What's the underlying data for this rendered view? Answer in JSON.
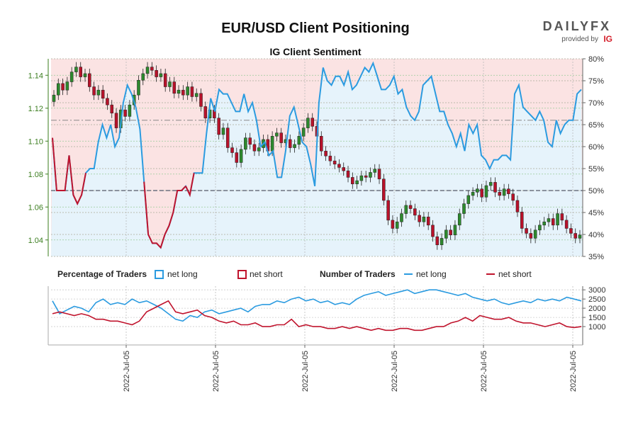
{
  "brand": {
    "logo_text": "DAILYFX",
    "provided_by": "provided by",
    "ig_mark": "IG",
    "accent_color": "#d4202c"
  },
  "chart_data": {
    "type": "line",
    "title": "EUR/USD Client Positioning",
    "subtitle": "IG Client Sentiment",
    "colors": {
      "net_long": "#2b9be0",
      "net_short": "#c0142d",
      "price_axis": "#3a7d1e",
      "long_fill": "#e6f3fb",
      "short_fill": "#fbe3e3"
    },
    "price_axis": {
      "ylim": [
        1.03,
        1.15
      ],
      "ticks": [
        "1.04",
        "1.06",
        "1.08",
        "1.10",
        "1.12",
        "1.14"
      ]
    },
    "pct_axis": {
      "ylim": [
        35,
        80
      ],
      "ticks": [
        "35%",
        "40%",
        "45%",
        "50%",
        "55%",
        "60%",
        "65%",
        "70%",
        "75%",
        "80%"
      ]
    },
    "count_axis": {
      "ylim": [
        0,
        3200
      ],
      "ticks": [
        "1000",
        "1500",
        "2000",
        "2500",
        "3000"
      ]
    },
    "x_labels": [
      "2022-Jul-05",
      "2022-Jul-05",
      "2022-Jul-05",
      "2022-Jul-05",
      "2022-Jul-05",
      "2022-Jul-05"
    ],
    "reference_pct": [
      50,
      66
    ],
    "price_close": [
      1.128,
      1.135,
      1.131,
      1.136,
      1.142,
      1.145,
      1.139,
      1.141,
      1.133,
      1.128,
      1.131,
      1.126,
      1.122,
      1.117,
      1.108,
      1.119,
      1.115,
      1.122,
      1.128,
      1.137,
      1.141,
      1.145,
      1.143,
      1.139,
      1.141,
      1.133,
      1.136,
      1.129,
      1.131,
      1.128,
      1.133,
      1.127,
      1.129,
      1.121,
      1.114,
      1.119,
      1.114,
      1.104,
      1.108,
      1.096,
      1.093,
      1.087,
      1.095,
      1.102,
      1.098,
      1.094,
      1.096,
      1.101,
      1.094,
      1.103,
      1.105,
      1.099,
      1.101,
      1.096,
      1.098,
      1.103,
      1.108,
      1.114,
      1.109,
      1.103,
      1.094,
      1.091,
      1.088,
      1.086,
      1.084,
      1.082,
      1.078,
      1.074,
      1.076,
      1.079,
      1.078,
      1.081,
      1.083,
      1.077,
      1.064,
      1.052,
      1.047,
      1.051,
      1.056,
      1.061,
      1.059,
      1.055,
      1.051,
      1.054,
      1.049,
      1.042,
      1.037,
      1.041,
      1.046,
      1.043,
      1.049,
      1.056,
      1.062,
      1.067,
      1.069,
      1.071,
      1.066,
      1.073,
      1.075,
      1.069,
      1.067,
      1.071,
      1.068,
      1.064,
      1.057,
      1.047,
      1.044,
      1.041,
      1.046,
      1.049,
      1.051,
      1.053,
      1.049,
      1.056,
      1.052,
      1.047,
      1.044,
      1.041,
      1.043
    ],
    "pct_long": [
      62,
      50,
      50,
      50,
      58,
      49,
      47,
      49,
      54,
      55,
      55,
      61,
      65,
      62,
      65,
      60,
      62,
      70,
      74,
      72,
      69,
      64,
      52,
      40,
      38,
      38,
      37,
      40,
      42,
      45,
      50,
      50,
      51,
      49,
      54,
      54,
      54,
      63,
      71,
      68,
      73,
      72,
      72,
      70,
      68,
      68,
      72,
      68,
      70,
      66,
      60,
      61,
      58,
      59,
      53,
      53,
      59,
      67,
      69,
      65,
      61,
      60,
      56,
      51,
      70,
      78,
      75,
      74,
      76,
      76,
      74,
      77,
      73,
      74,
      76,
      78,
      77,
      79,
      76,
      73,
      73,
      74,
      76,
      72,
      73,
      69,
      67,
      66,
      68,
      74,
      75,
      76,
      72,
      68,
      68,
      65,
      63,
      60,
      63,
      59,
      65,
      63,
      65,
      58,
      57,
      55,
      57,
      57,
      58,
      58,
      57,
      72,
      74,
      69,
      68,
      67,
      66,
      68,
      66,
      61,
      60,
      66,
      63,
      65,
      66,
      66,
      72,
      73
    ],
    "count_long": [
      2400,
      1700,
      1900,
      2100,
      2000,
      1800,
      2300,
      2500,
      2200,
      2300,
      2200,
      2500,
      2300,
      2400,
      2200,
      2000,
      1700,
      1400,
      1300,
      1600,
      1500,
      1800,
      1900,
      1700,
      1800,
      1900,
      2000,
      1800,
      2100,
      2200,
      2200,
      2400,
      2300,
      2500,
      2600,
      2400,
      2500,
      2300,
      2400,
      2200,
      2300,
      2200,
      2500,
      2700,
      2800,
      2900,
      2700,
      2800,
      2900,
      3000,
      2800,
      2900,
      3000,
      3000,
      2900,
      2800,
      2700,
      2800,
      2600,
      2500,
      2400,
      2500,
      2300,
      2200,
      2300,
      2400,
      2300,
      2500,
      2400,
      2500,
      2400,
      2600,
      2500,
      2400
    ],
    "count_short": [
      1700,
      1800,
      1700,
      1600,
      1700,
      1600,
      1400,
      1400,
      1300,
      1300,
      1200,
      1100,
      1300,
      1800,
      2000,
      2200,
      2400,
      1800,
      1700,
      1800,
      1900,
      1600,
      1500,
      1300,
      1200,
      1300,
      1100,
      1100,
      1200,
      1000,
      1000,
      1100,
      1100,
      1400,
      1000,
      1100,
      1000,
      1000,
      900,
      900,
      1000,
      900,
      1000,
      900,
      800,
      900,
      800,
      800,
      900,
      900,
      800,
      800,
      900,
      1000,
      1000,
      1200,
      1300,
      1500,
      1300,
      1600,
      1500,
      1400,
      1400,
      1500,
      1300,
      1200,
      1200,
      1100,
      1000,
      1100,
      1200,
      1000,
      950,
      1000
    ],
    "legend": {
      "pct_heading": "Percentage of Traders",
      "count_heading": "Number of Traders",
      "net_long": "net long",
      "net_short": "net short"
    }
  }
}
